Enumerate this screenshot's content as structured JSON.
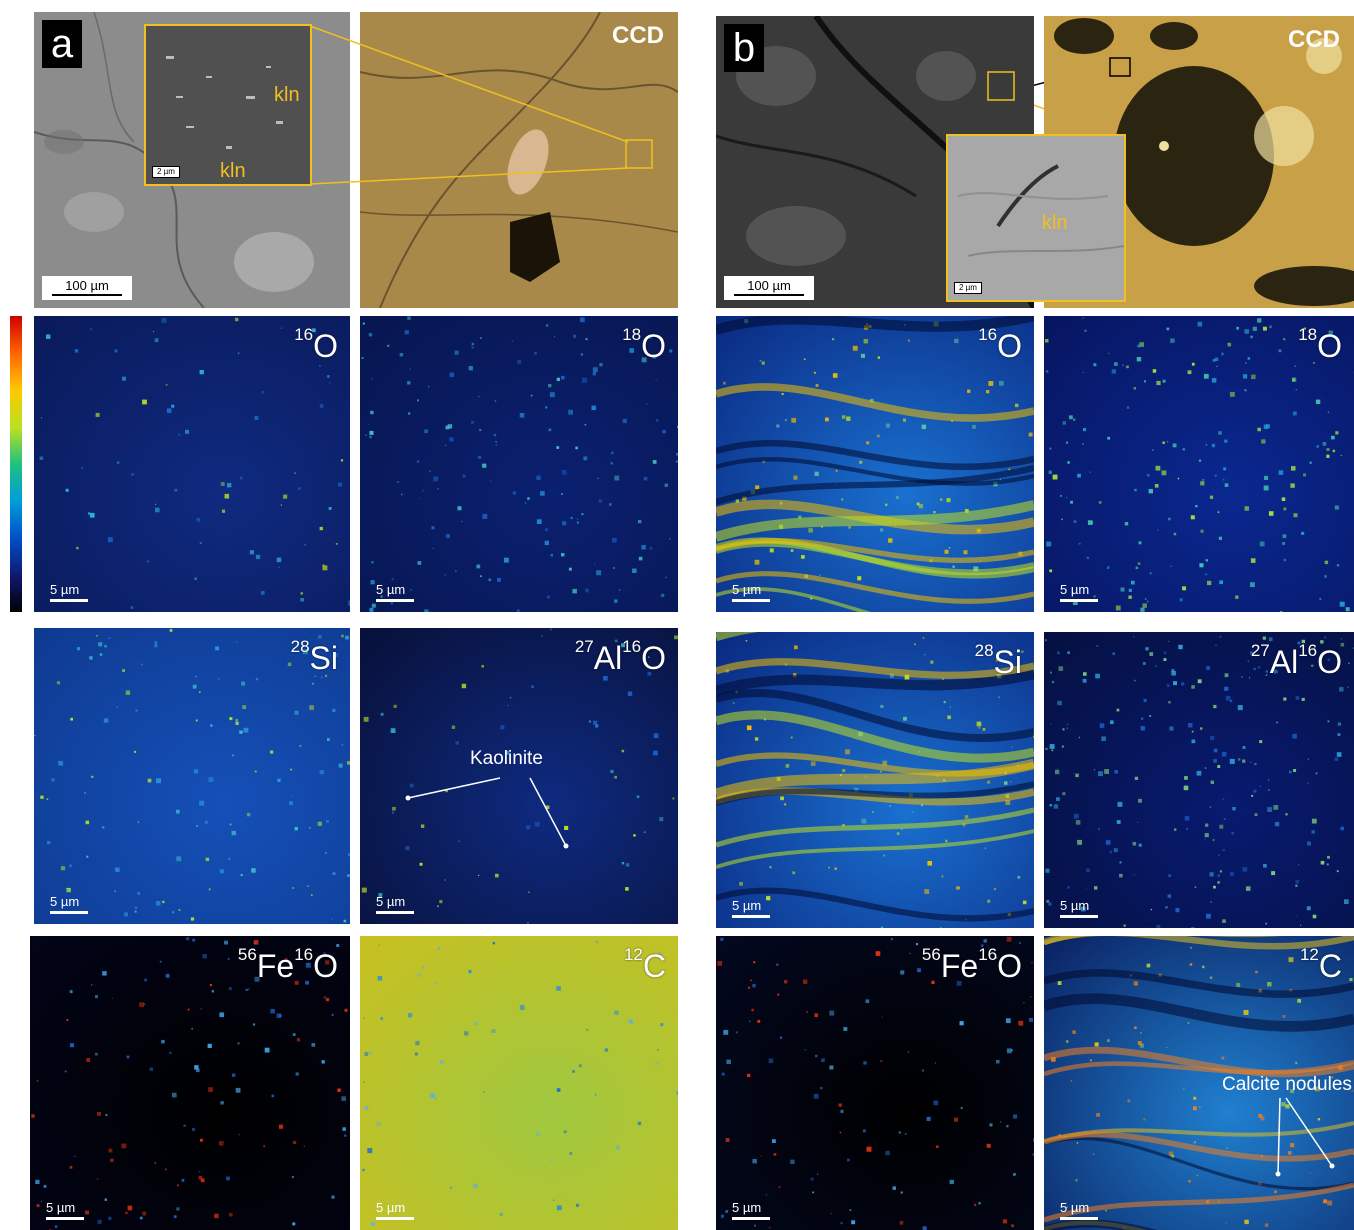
{
  "panel_a": {
    "letter": "a",
    "ccd_label": "CCD",
    "sem_scale": "100 µm",
    "inset_scale": "2 µm",
    "kln_labels": [
      "kln",
      "kln"
    ],
    "maps": [
      {
        "iso": "16",
        "el": "O",
        "iso2": "",
        "el2": "",
        "scale": "5 µm"
      },
      {
        "iso": "18",
        "el": "O",
        "iso2": "",
        "el2": "",
        "scale": "5 µm"
      },
      {
        "iso": "28",
        "el": "Si",
        "iso2": "",
        "el2": "",
        "scale": "5 µm"
      },
      {
        "iso": "27",
        "el": "Al",
        "iso2": "16",
        "el2": "O",
        "scale": "5 µm"
      },
      {
        "iso": "56",
        "el": "Fe",
        "iso2": "16",
        "el2": "O",
        "scale": "5 µm"
      },
      {
        "iso": "12",
        "el": "C",
        "iso2": "",
        "el2": "",
        "scale": "5 µm"
      }
    ],
    "annotation": "Kaolinite"
  },
  "panel_b": {
    "letter": "b",
    "ccd_label": "CCD",
    "sem_scale": "100 µm",
    "inset_scale": "2 µm",
    "kln_label": "kln",
    "maps": [
      {
        "iso": "16",
        "el": "O",
        "iso2": "",
        "el2": "",
        "scale": "5 µm"
      },
      {
        "iso": "18",
        "el": "O",
        "iso2": "",
        "el2": "",
        "scale": "5 µm"
      },
      {
        "iso": "28",
        "el": "Si",
        "iso2": "",
        "el2": "",
        "scale": "5 µm"
      },
      {
        "iso": "27",
        "el": "Al",
        "iso2": "16",
        "el2": "O",
        "scale": "5 µm"
      },
      {
        "iso": "56",
        "el": "Fe",
        "iso2": "16",
        "el2": "O",
        "scale": "5 µm"
      },
      {
        "iso": "12",
        "el": "C",
        "iso2": "",
        "el2": "",
        "scale": "5 µm"
      }
    ],
    "annotation": "Calcite nodules"
  },
  "colors": {
    "inset_border": "#f0c020",
    "map_dark": "#0a1a5a",
    "map_mid": "#1060d0",
    "map_hot": "#d02000"
  }
}
